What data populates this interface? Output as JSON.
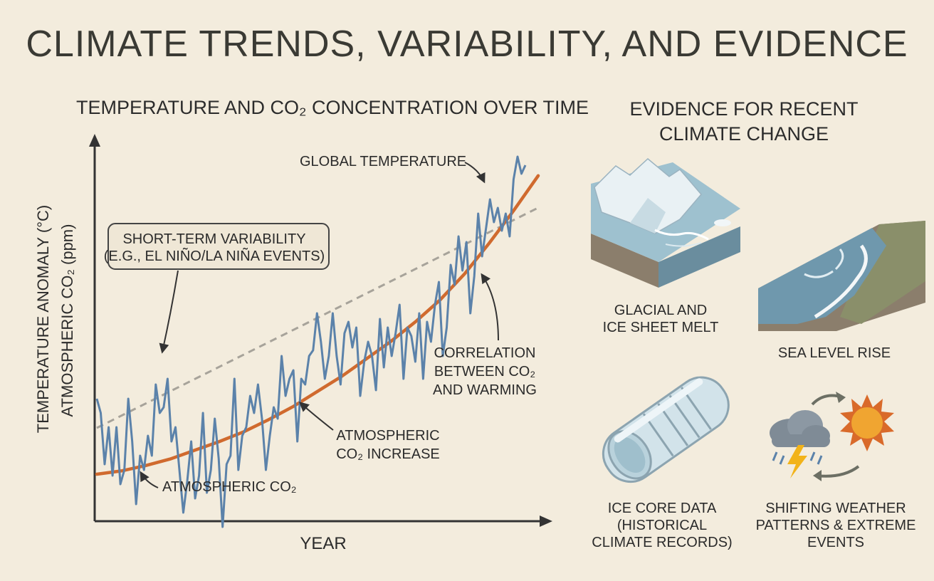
{
  "title": "CLIMATE TRENDS, VARIABILITY, AND EVIDENCE",
  "chart": {
    "title": "TEMPERATURE AND CO₂ CONCENTRATION OVER TIME",
    "ylabel_primary": "TEMPERATURE ANOMALY (°C)",
    "ylabel_secondary": "ATMOSPHERIC CO₂ (ppm)",
    "xlabel": "YEAR",
    "annotations": {
      "global_temperature": "GLOBAL TEMPERATURE",
      "variability_line1": "SHORT-TERM VARIABILITY",
      "variability_line2": "(E.G., EL NIÑO/LA NIÑA EVENTS)",
      "correlation_line1": "CORRELATION",
      "correlation_line2": "BETWEEN CO₂",
      "correlation_line3": "AND WARMING",
      "co2_increase_line1": "ATMOSPHERIC",
      "co2_increase_line2": "CO₂ INCREASE",
      "atmospheric_co2": "ATMOSPHERIC CO₂"
    },
    "colors": {
      "temperature": "#5b82aa",
      "co2": "#d06a2e",
      "trend": "#a7a39a",
      "axis": "#333333"
    }
  },
  "chart_data": {
    "type": "line",
    "title": "TEMPERATURE AND CO₂ CONCENTRATION OVER TIME",
    "xlabel": "YEAR",
    "ylabel": "TEMPERATURE ANOMALY (°C) / ATMOSPHERIC CO₂ (ppm)",
    "ticks_shown": false,
    "series": [
      {
        "name": "GLOBAL TEMPERATURE",
        "style": "solid",
        "values": [
          0.55,
          0.5,
          0.32,
          0.45,
          0.28,
          0.45,
          0.25,
          0.3,
          0.55,
          0.4,
          0.18,
          0.35,
          0.3,
          0.42,
          0.35,
          0.6,
          0.5,
          0.52,
          0.62,
          0.4,
          0.45,
          0.3,
          0.15,
          0.26,
          0.4,
          0.2,
          0.28,
          0.5,
          0.22,
          0.3,
          0.48,
          0.34,
          0.1,
          0.32,
          0.35,
          0.62,
          0.3,
          0.42,
          0.45,
          0.56,
          0.5,
          0.6,
          0.48,
          0.3,
          0.42,
          0.52,
          0.48,
          0.7,
          0.56,
          0.62,
          0.65,
          0.4,
          0.62,
          0.6,
          0.7,
          0.72,
          0.85,
          0.75,
          0.62,
          0.7,
          0.85,
          0.7,
          0.6,
          0.78,
          0.82,
          0.73,
          0.8,
          0.56,
          0.68,
          0.75,
          0.7,
          0.58,
          0.83,
          0.66,
          0.8,
          0.7,
          0.78,
          0.88,
          0.62,
          0.8,
          0.77,
          0.68,
          0.85,
          0.62,
          0.82,
          0.75,
          0.88,
          0.96,
          0.7,
          0.8,
          1.02,
          0.95,
          1.12,
          1.0,
          1.1,
          0.85,
          0.98,
          1.2,
          1.05,
          1.15,
          1.25,
          1.17,
          1.22,
          1.14,
          1.2,
          1.12,
          1.32,
          1.4,
          1.34,
          1.37
        ]
      },
      {
        "name": "ATMOSPHERIC CO₂",
        "style": "solid",
        "values": [
          0.0,
          0.03,
          0.08,
          0.14,
          0.22,
          0.3,
          0.39,
          0.5,
          0.62,
          0.76,
          0.9,
          1.06,
          1.22,
          1.4,
          1.6,
          1.84,
          2.12,
          2.42,
          2.74
        ]
      },
      {
        "name": "trend",
        "style": "dashed",
        "values": [
          0.3,
          1.24
        ]
      }
    ]
  },
  "evidence": {
    "title_line1": "EVIDENCE FOR RECENT",
    "title_line2": "CLIMATE CHANGE",
    "items": [
      {
        "icon": "glacier-icon",
        "line1": "GLACIAL AND",
        "line2": "ICE SHEET MELT"
      },
      {
        "icon": "sea-level-icon",
        "line1": "SEA LEVEL RISE"
      },
      {
        "icon": "ice-core-icon",
        "line1": "ICE CORE DATA",
        "line2": "(HISTORICAL",
        "line3": "CLIMATE RECORDS)"
      },
      {
        "icon": "weather-icon",
        "line1": "SHIFTING WEATHER",
        "line2": "PATTERNS & EXTREME",
        "line3": "EVENTS"
      }
    ]
  }
}
